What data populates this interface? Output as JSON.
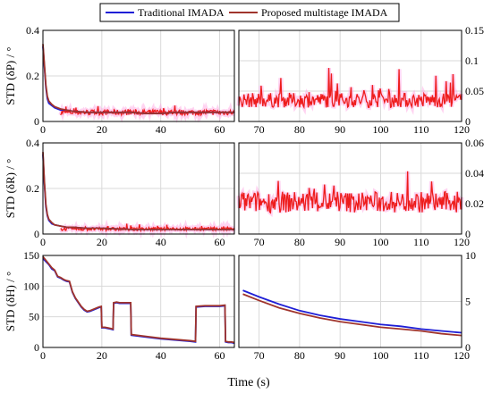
{
  "chart_data": {
    "type": "line",
    "legend": {
      "placement": "top-center",
      "entries": [
        {
          "name": "Traditional IMADA",
          "color": "#1f1fd6"
        },
        {
          "name": "Proposed multistage IMADA",
          "color": "#a0342c"
        }
      ]
    },
    "noise_color": "#ee1c1c",
    "noise_bg_color": "#ff9de0",
    "xlabel": "Time (s)",
    "rows": [
      {
        "ylabel": "STD (δP) / °",
        "left": {
          "xlim": [
            0,
            65
          ],
          "ylim": [
            0,
            0.4
          ],
          "xticks": [
            "0",
            "20",
            "40",
            "60"
          ],
          "yticks": [
            "0",
            "0.2",
            "0.4"
          ],
          "traditional": [
            [
              0,
              0.33
            ],
            [
              0.5,
              0.24
            ],
            [
              1,
              0.15
            ],
            [
              1.5,
              0.1
            ],
            [
              2,
              0.08
            ],
            [
              3,
              0.07
            ],
            [
              4,
              0.06
            ],
            [
              6,
              0.05
            ],
            [
              8,
              0.05
            ],
            [
              10,
              0.045
            ],
            [
              15,
              0.04
            ],
            [
              20,
              0.04
            ],
            [
              25,
              0.04
            ],
            [
              30,
              0.04
            ],
            [
              35,
              0.035
            ],
            [
              40,
              0.035
            ],
            [
              45,
              0.04
            ],
            [
              50,
              0.04
            ],
            [
              55,
              0.04
            ],
            [
              60,
              0.04
            ],
            [
              65,
              0.04
            ]
          ],
          "proposed": [
            [
              0,
              0.34
            ],
            [
              0.5,
              0.25
            ],
            [
              1,
              0.16
            ],
            [
              1.5,
              0.11
            ],
            [
              2,
              0.09
            ],
            [
              3,
              0.075
            ],
            [
              4,
              0.065
            ],
            [
              6,
              0.055
            ],
            [
              8,
              0.05
            ],
            [
              10,
              0.045
            ],
            [
              15,
              0.04
            ],
            [
              20,
              0.04
            ],
            [
              25,
              0.04
            ],
            [
              30,
              0.04
            ],
            [
              35,
              0.035
            ],
            [
              40,
              0.035
            ],
            [
              45,
              0.04
            ],
            [
              50,
              0.04
            ],
            [
              55,
              0.04
            ],
            [
              60,
              0.04
            ],
            [
              65,
              0.04
            ]
          ],
          "noise": {
            "base": 0.04,
            "amp": 0.012,
            "spike": 0.03
          }
        },
        "right": {
          "xlim": [
            65,
            120
          ],
          "ylim": [
            0,
            0.15
          ],
          "xticks": [
            "70",
            "80",
            "90",
            "100",
            "110",
            "120"
          ],
          "yticks": [
            "0",
            "0.05",
            "0.1",
            "0.15"
          ],
          "traditional": [],
          "proposed": [],
          "noise": {
            "base": 0.035,
            "amp": 0.012,
            "spike": 0.045
          }
        }
      },
      {
        "ylabel": "STD (δR) / °",
        "left": {
          "xlim": [
            0,
            65
          ],
          "ylim": [
            0,
            0.4
          ],
          "xticks": [
            "0",
            "20",
            "40",
            "60"
          ],
          "yticks": [
            "0",
            "0.2",
            "0.4"
          ],
          "traditional": [
            [
              0,
              0.35
            ],
            [
              0.5,
              0.22
            ],
            [
              1,
              0.12
            ],
            [
              1.5,
              0.08
            ],
            [
              2,
              0.06
            ],
            [
              3,
              0.045
            ],
            [
              4,
              0.04
            ],
            [
              6,
              0.035
            ],
            [
              8,
              0.03
            ],
            [
              10,
              0.03
            ],
            [
              15,
              0.025
            ],
            [
              20,
              0.025
            ],
            [
              30,
              0.02
            ],
            [
              40,
              0.02
            ],
            [
              50,
              0.02
            ],
            [
              60,
              0.02
            ],
            [
              65,
              0.02
            ]
          ],
          "proposed": [
            [
              0,
              0.36
            ],
            [
              0.5,
              0.23
            ],
            [
              1,
              0.13
            ],
            [
              1.5,
              0.085
            ],
            [
              2,
              0.065
            ],
            [
              3,
              0.05
            ],
            [
              4,
              0.04
            ],
            [
              6,
              0.035
            ],
            [
              8,
              0.03
            ],
            [
              10,
              0.03
            ],
            [
              15,
              0.025
            ],
            [
              20,
              0.025
            ],
            [
              30,
              0.02
            ],
            [
              40,
              0.02
            ],
            [
              50,
              0.02
            ],
            [
              60,
              0.02
            ],
            [
              65,
              0.02
            ]
          ],
          "noise": {
            "base": 0.022,
            "amp": 0.007,
            "spike": 0.02
          }
        },
        "right": {
          "xlim": [
            65,
            120
          ],
          "ylim": [
            0,
            0.06
          ],
          "xticks": [
            "70",
            "80",
            "90",
            "100",
            "110",
            "120"
          ],
          "yticks": [
            "0",
            "0.02",
            "0.04",
            "0.06"
          ],
          "traditional": [],
          "proposed": [],
          "noise": {
            "base": 0.021,
            "amp": 0.007,
            "spike": 0.015
          }
        }
      },
      {
        "ylabel": "STD (δH) / °",
        "left": {
          "xlim": [
            0,
            65
          ],
          "ylim": [
            0,
            150
          ],
          "xticks": [
            "0",
            "20",
            "40",
            "60"
          ],
          "yticks": [
            "0",
            "50",
            "100",
            "150"
          ],
          "traditional": [
            [
              0,
              145
            ],
            [
              1,
              140
            ],
            [
              2,
              135
            ],
            [
              3,
              128
            ],
            [
              4,
              125
            ],
            [
              5,
              115
            ],
            [
              6,
              113
            ],
            [
              7,
              110
            ],
            [
              8,
              108
            ],
            [
              9,
              107
            ],
            [
              10,
              90
            ],
            [
              11,
              80
            ],
            [
              12,
              73
            ],
            [
              13,
              66
            ],
            [
              14,
              61
            ],
            [
              15,
              58
            ],
            [
              16,
              59
            ],
            [
              17,
              61
            ],
            [
              18,
              63
            ],
            [
              19,
              65
            ],
            [
              19.8,
              66
            ],
            [
              20,
              32
            ],
            [
              21,
              32
            ],
            [
              22,
              31
            ],
            [
              23,
              30
            ],
            [
              23.8,
              29
            ],
            [
              24,
              72
            ],
            [
              25,
              73
            ],
            [
              26,
              72
            ],
            [
              27,
              72
            ],
            [
              28,
              72
            ],
            [
              29,
              72
            ],
            [
              29.8,
              72
            ],
            [
              30,
              20
            ],
            [
              35,
              17
            ],
            [
              40,
              14
            ],
            [
              45,
              12
            ],
            [
              50,
              10
            ],
            [
              51.8,
              9
            ],
            [
              52,
              66
            ],
            [
              55,
              67
            ],
            [
              58,
              67
            ],
            [
              60,
              67
            ],
            [
              61.8,
              68
            ],
            [
              62,
              9
            ],
            [
              63,
              8
            ],
            [
              64,
              8
            ],
            [
              65,
              7
            ]
          ],
          "proposed": [
            [
              0,
              148
            ],
            [
              1,
              142
            ],
            [
              2,
              136
            ],
            [
              3,
              130
            ],
            [
              4,
              126
            ],
            [
              5,
              116
            ],
            [
              6,
              114
            ],
            [
              7,
              111
            ],
            [
              8,
              109
            ],
            [
              9,
              108
            ],
            [
              10,
              91
            ],
            [
              11,
              81
            ],
            [
              12,
              74
            ],
            [
              13,
              67
            ],
            [
              14,
              62
            ],
            [
              15,
              59
            ],
            [
              16,
              60
            ],
            [
              17,
              62
            ],
            [
              18,
              64
            ],
            [
              19,
              66
            ],
            [
              19.8,
              67
            ],
            [
              20,
              33
            ],
            [
              21,
              33
            ],
            [
              22,
              32
            ],
            [
              23,
              31
            ],
            [
              23.8,
              30
            ],
            [
              24,
              73
            ],
            [
              25,
              74
            ],
            [
              26,
              73
            ],
            [
              27,
              73
            ],
            [
              28,
              73
            ],
            [
              29,
              73
            ],
            [
              29.8,
              73
            ],
            [
              30,
              21
            ],
            [
              35,
              18
            ],
            [
              40,
              15
            ],
            [
              45,
              13
            ],
            [
              50,
              11
            ],
            [
              51.8,
              10
            ],
            [
              52,
              67
            ],
            [
              55,
              68
            ],
            [
              58,
              68
            ],
            [
              60,
              68
            ],
            [
              61.8,
              69
            ],
            [
              62,
              10
            ],
            [
              63,
              9
            ],
            [
              64,
              9
            ],
            [
              65,
              8
            ]
          ],
          "noise": null
        },
        "right": {
          "xlim": [
            65,
            120
          ],
          "ylim": [
            0,
            10
          ],
          "xticks": [
            "70",
            "80",
            "90",
            "100",
            "110",
            "120"
          ],
          "yticks": [
            "0",
            "5",
            "10"
          ],
          "traditional": [
            [
              66,
              6.2
            ],
            [
              70,
              5.5
            ],
            [
              75,
              4.7
            ],
            [
              80,
              4.0
            ],
            [
              85,
              3.5
            ],
            [
              90,
              3.1
            ],
            [
              95,
              2.8
            ],
            [
              100,
              2.5
            ],
            [
              105,
              2.3
            ],
            [
              110,
              2.0
            ],
            [
              115,
              1.8
            ],
            [
              120,
              1.6
            ]
          ],
          "proposed": [
            [
              66,
              5.8
            ],
            [
              70,
              5.1
            ],
            [
              75,
              4.3
            ],
            [
              80,
              3.7
            ],
            [
              85,
              3.2
            ],
            [
              90,
              2.8
            ],
            [
              95,
              2.5
            ],
            [
              100,
              2.2
            ],
            [
              105,
              2.0
            ],
            [
              110,
              1.8
            ],
            [
              115,
              1.5
            ],
            [
              120,
              1.3
            ]
          ],
          "noise": null
        }
      }
    ]
  }
}
